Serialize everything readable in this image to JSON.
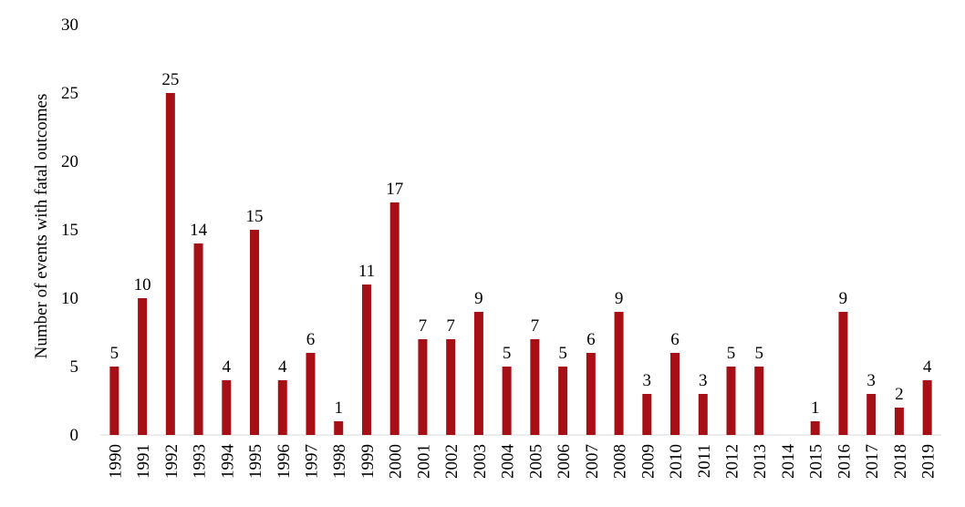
{
  "chart_data": {
    "type": "bar",
    "categories": [
      "1990",
      "1991",
      "1992",
      "1993",
      "1994",
      "1995",
      "1996",
      "1997",
      "1998",
      "1999",
      "2000",
      "2001",
      "2002",
      "2003",
      "2004",
      "2005",
      "2006",
      "2007",
      "2008",
      "2009",
      "2010",
      "2011",
      "2012",
      "2013",
      "2014",
      "2015",
      "2016",
      "2017",
      "2018",
      "2019"
    ],
    "values": [
      5,
      10,
      25,
      14,
      4,
      15,
      4,
      6,
      1,
      11,
      17,
      7,
      7,
      9,
      5,
      7,
      5,
      6,
      9,
      3,
      6,
      3,
      5,
      5,
      null,
      1,
      9,
      3,
      2,
      4
    ],
    "title": "",
    "xlabel": "",
    "ylabel": "Number of events with fatal outcomes",
    "ylim": [
      0,
      30
    ],
    "yticks": [
      0,
      5,
      10,
      15,
      20,
      25,
      30
    ],
    "grid": false,
    "bar_color": "#A50F15"
  }
}
